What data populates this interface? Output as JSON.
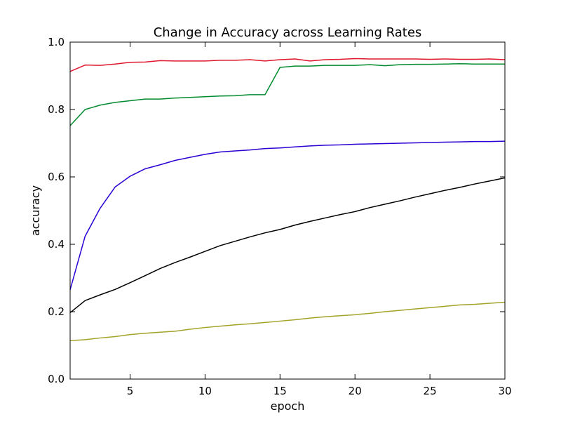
{
  "chart_data": {
    "type": "line",
    "title": "Change in Accuracy across Learning Rates",
    "xlabel": "epoch",
    "ylabel": "accuracy",
    "xlim": [
      1,
      30
    ],
    "ylim": [
      0.0,
      1.0
    ],
    "xticks": [
      5,
      10,
      15,
      20,
      25,
      30
    ],
    "xtick_labels": [
      "5",
      "10",
      "15",
      "20",
      "25",
      "30"
    ],
    "yticks": [
      0.0,
      0.2,
      0.4,
      0.6,
      0.8,
      1.0
    ],
    "ytick_labels": [
      "0.0",
      "0.2",
      "0.4",
      "0.6",
      "0.8",
      "1.0"
    ],
    "grid": false,
    "x": [
      1,
      2,
      3,
      4,
      5,
      6,
      7,
      8,
      9,
      10,
      11,
      12,
      13,
      14,
      15,
      16,
      17,
      18,
      19,
      20,
      21,
      22,
      23,
      24,
      25,
      26,
      27,
      28,
      29,
      30
    ],
    "series": [
      {
        "color": "#e0162e",
        "values": [
          0.913,
          0.932,
          0.931,
          0.935,
          0.94,
          0.941,
          0.945,
          0.944,
          0.944,
          0.944,
          0.946,
          0.946,
          0.948,
          0.944,
          0.948,
          0.95,
          0.944,
          0.948,
          0.949,
          0.951,
          0.95,
          0.95,
          0.95,
          0.95,
          0.949,
          0.95,
          0.949,
          0.949,
          0.95,
          0.948
        ]
      },
      {
        "color": "#008a2e",
        "values": [
          0.752,
          0.8,
          0.813,
          0.821,
          0.826,
          0.831,
          0.831,
          0.834,
          0.836,
          0.838,
          0.84,
          0.841,
          0.844,
          0.844,
          0.925,
          0.929,
          0.929,
          0.931,
          0.931,
          0.931,
          0.933,
          0.93,
          0.933,
          0.934,
          0.934,
          0.935,
          0.936,
          0.935,
          0.935,
          0.935
        ]
      },
      {
        "color": "#2a00d4",
        "values": [
          0.265,
          0.424,
          0.507,
          0.57,
          0.602,
          0.624,
          0.636,
          0.649,
          0.658,
          0.667,
          0.674,
          0.677,
          0.68,
          0.684,
          0.686,
          0.689,
          0.692,
          0.694,
          0.695,
          0.697,
          0.698,
          0.699,
          0.7,
          0.701,
          0.702,
          0.703,
          0.704,
          0.705,
          0.705,
          0.706
        ]
      },
      {
        "color": "#000000",
        "values": [
          0.197,
          0.233,
          0.25,
          0.266,
          0.286,
          0.307,
          0.328,
          0.346,
          0.362,
          0.379,
          0.396,
          0.409,
          0.422,
          0.434,
          0.444,
          0.457,
          0.468,
          0.478,
          0.488,
          0.497,
          0.509,
          0.519,
          0.529,
          0.54,
          0.55,
          0.56,
          0.569,
          0.579,
          0.588,
          0.597
        ]
      },
      {
        "color": "#a3a32a",
        "values": [
          0.114,
          0.117,
          0.122,
          0.126,
          0.132,
          0.136,
          0.139,
          0.142,
          0.148,
          0.153,
          0.157,
          0.161,
          0.164,
          0.168,
          0.172,
          0.176,
          0.181,
          0.185,
          0.188,
          0.191,
          0.195,
          0.2,
          0.204,
          0.208,
          0.212,
          0.216,
          0.22,
          0.222,
          0.225,
          0.228
        ]
      }
    ]
  }
}
